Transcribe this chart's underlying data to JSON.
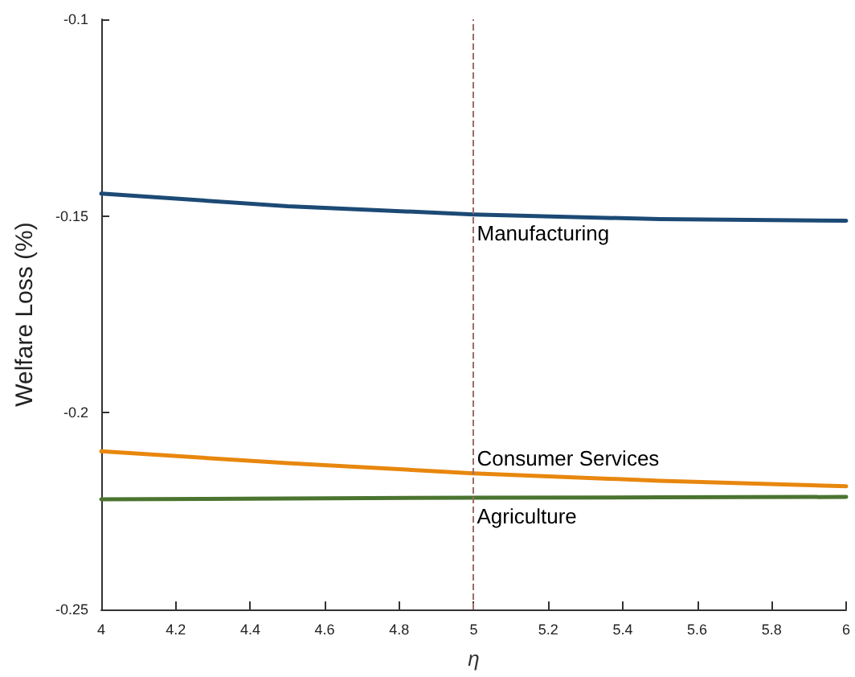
{
  "chart_data": {
    "type": "line",
    "xlabel": "η",
    "ylabel": "Welfare Loss (%)",
    "x": [
      4,
      4.5,
      5,
      5.5,
      6
    ],
    "series": [
      {
        "name": "Manufacturing",
        "color": "#1c4a75",
        "values": [
          -0.1443,
          -0.1475,
          -0.1496,
          -0.1508,
          -0.1512
        ]
      },
      {
        "name": "Consumer Services",
        "color": "#e8870e",
        "values": [
          -0.2098,
          -0.2128,
          -0.2154,
          -0.2173,
          -0.2187
        ]
      },
      {
        "name": "Agriculture",
        "color": "#4b7430",
        "values": [
          -0.222,
          -0.2218,
          -0.2216,
          -0.2215,
          -0.2214
        ]
      }
    ],
    "xlim": [
      4,
      6
    ],
    "xticks": [
      4,
      4.2,
      4.4,
      4.6,
      4.8,
      5,
      5.2,
      5.4,
      5.6,
      5.8,
      6
    ],
    "ylim": [
      -0.25,
      -0.1
    ],
    "yticks": [
      -0.25,
      -0.2,
      -0.15,
      -0.1
    ],
    "ref_lines": [
      {
        "axis": "x",
        "value": 5,
        "color": "#9c6b6b",
        "line_style": "dashed"
      }
    ],
    "grid": false,
    "marker": "none",
    "line_style": "solid"
  }
}
